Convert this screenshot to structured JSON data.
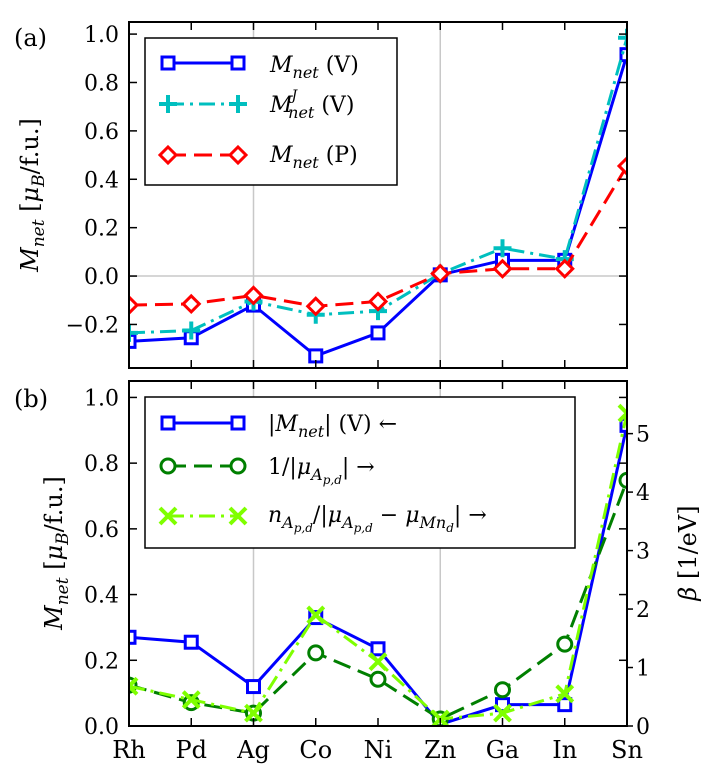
{
  "chart_data": [
    {
      "type": "line",
      "panel_label": "(a)",
      "ylabel": "M_net [μ_B/f.u.]",
      "categories": [
        "Rh",
        "Pd",
        "Ag",
        "Co",
        "Ni",
        "Zn",
        "Ga",
        "In",
        "Sn"
      ],
      "ylim": [
        -0.38,
        1.05
      ],
      "yticks": [
        -0.2,
        0.0,
        0.2,
        0.4,
        0.6,
        0.8,
        1.0
      ],
      "ytick_labels": [
        "−0.2",
        "0.0",
        "0.2",
        "0.4",
        "0.6",
        "0.8",
        "1.0"
      ],
      "grid_x_at": [
        "Ag",
        "Zn"
      ],
      "hline_at": 0.0,
      "legend_placement": "upper-left",
      "series": [
        {
          "name": "M_net (V)",
          "color": "#0000ff",
          "linestyle": "solid",
          "marker": "square",
          "values": [
            -0.27,
            -0.255,
            -0.12,
            -0.33,
            -0.235,
            0.005,
            0.065,
            0.065,
            0.915
          ]
        },
        {
          "name": "M_net^J (V)",
          "color": "#00bfbf",
          "linestyle": "dashdot",
          "marker": "plus",
          "values": [
            -0.235,
            -0.225,
            -0.105,
            -0.16,
            -0.145,
            0.01,
            0.115,
            0.07,
            0.985
          ]
        },
        {
          "name": "M_net (P)",
          "color": "#ff0000",
          "linestyle": "dashed",
          "marker": "diamond",
          "values": [
            -0.12,
            -0.115,
            -0.08,
            -0.125,
            -0.105,
            0.01,
            0.03,
            0.03,
            0.455
          ]
        }
      ]
    },
    {
      "type": "line",
      "panel_label": "(b)",
      "ylabel": "M_net [μ_B/f.u.]",
      "ylabel_right": "β [1/eV]",
      "categories": [
        "Rh",
        "Pd",
        "Ag",
        "Co",
        "Ni",
        "Zn",
        "Ga",
        "In",
        "Sn"
      ],
      "ylim": [
        0.0,
        1.05
      ],
      "yticks": [
        0.0,
        0.2,
        0.4,
        0.6,
        0.8,
        1.0
      ],
      "ytick_labels": [
        "0.0",
        "0.2",
        "0.4",
        "0.6",
        "0.8",
        "1.0"
      ],
      "ylim_right": [
        0.0,
        5.9
      ],
      "yticks_right": [
        0,
        1,
        2,
        3,
        4,
        5
      ],
      "ytick_labels_right": [
        "0",
        "1",
        "2",
        "3",
        "4",
        "5"
      ],
      "grid_x_at": [
        "Ag",
        "Zn"
      ],
      "legend_placement": "upper-left",
      "series": [
        {
          "name": "|M_net| (V) ←",
          "color": "#0000ff",
          "linestyle": "solid",
          "marker": "square",
          "axis": "left",
          "values": [
            0.27,
            0.255,
            0.12,
            0.33,
            0.235,
            0.005,
            0.065,
            0.065,
            0.915
          ]
        },
        {
          "name": "1/|μ_Ap,d| →",
          "color": "#007f00",
          "linestyle": "dashed",
          "marker": "circle",
          "axis": "right",
          "values": [
            0.7,
            0.4,
            0.22,
            1.25,
            0.8,
            0.12,
            0.62,
            1.4,
            4.2
          ]
        },
        {
          "name": "n_Ap,d/|μ_Ap,d − μ_Mnd| →",
          "color": "#7fff00",
          "linestyle": "dashdot",
          "marker": "x",
          "axis": "right",
          "values": [
            0.68,
            0.45,
            0.22,
            1.9,
            1.1,
            0.12,
            0.22,
            0.55,
            5.35
          ]
        }
      ]
    }
  ]
}
